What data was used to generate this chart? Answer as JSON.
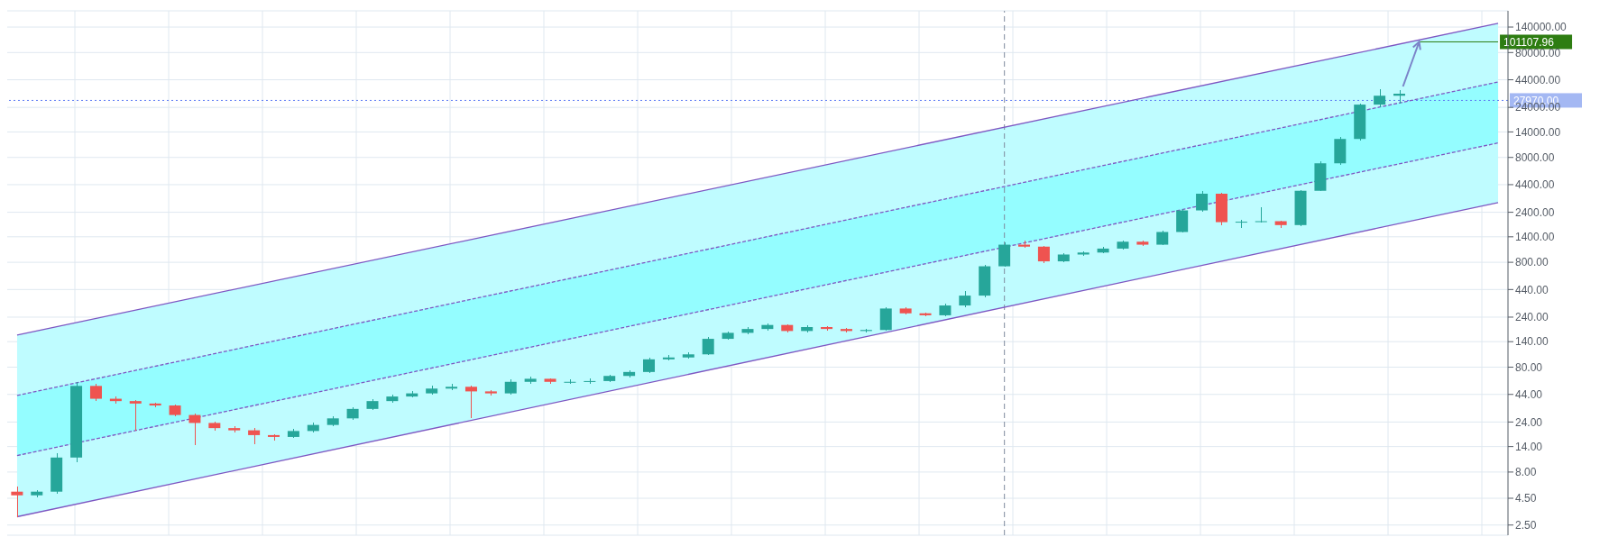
{
  "chart_data": {
    "type": "candlestick",
    "log": true,
    "grid": true,
    "tick_labels": "y",
    "categories": [
      null,
      null,
      null,
      null,
      null,
      null,
      null,
      null,
      null,
      null,
      null,
      null,
      null,
      null,
      null,
      null,
      null,
      null,
      null,
      null,
      null,
      null,
      null,
      null,
      null,
      null,
      null,
      null,
      null,
      null,
      null,
      null,
      null,
      null,
      null,
      null,
      null,
      null,
      null,
      null,
      null,
      null,
      null,
      null,
      null,
      null,
      null,
      null,
      null,
      null,
      null,
      null,
      null,
      null,
      null,
      null,
      null,
      null,
      null,
      null,
      null,
      null,
      null,
      null,
      null,
      null,
      null,
      null,
      null,
      null,
      null,
      null,
      null,
      null,
      null,
      null
    ],
    "ohlc": [
      [
        5.2,
        5.8,
        3.0,
        4.8
      ],
      [
        4.8,
        5.4,
        4.6,
        5.2
      ],
      [
        5.2,
        12,
        5.0,
        11
      ],
      [
        11,
        58,
        10,
        53
      ],
      [
        53,
        56,
        38,
        40
      ],
      [
        40,
        42,
        36,
        38
      ],
      [
        38,
        39,
        19.7,
        36
      ],
      [
        36,
        37,
        33,
        34.5
      ],
      [
        34.5,
        35,
        27,
        28
      ],
      [
        28,
        29,
        14.6,
        23.5
      ],
      [
        23.5,
        24,
        20,
        21
      ],
      [
        21,
        22,
        19,
        20
      ],
      [
        20,
        21,
        14.8,
        18
      ],
      [
        18,
        18.5,
        16,
        17.3
      ],
      [
        17.3,
        20.5,
        17,
        19.7
      ],
      [
        19.7,
        23.5,
        19,
        22.5
      ],
      [
        22.5,
        27,
        22,
        26
      ],
      [
        26,
        33,
        25,
        32
      ],
      [
        32,
        40,
        31,
        38
      ],
      [
        38,
        44,
        37,
        42
      ],
      [
        42,
        47,
        41,
        45
      ],
      [
        45,
        53,
        44,
        50
      ],
      [
        50,
        55,
        48,
        52
      ],
      [
        52,
        53,
        26,
        47
      ],
      [
        47,
        48,
        43,
        45
      ],
      [
        45,
        61,
        44,
        58
      ],
      [
        58,
        65,
        56,
        62
      ],
      [
        62,
        63,
        55,
        58
      ],
      [
        58,
        61,
        56,
        58
      ],
      [
        58,
        62,
        56,
        59
      ],
      [
        59,
        68,
        58,
        66
      ],
      [
        66,
        74,
        64,
        72
      ],
      [
        72,
        98,
        70,
        95
      ],
      [
        95,
        104,
        92,
        99
      ],
      [
        99,
        110,
        96,
        106
      ],
      [
        106,
        155,
        104,
        149
      ],
      [
        149,
        176,
        145,
        170
      ],
      [
        170,
        192,
        165,
        185
      ],
      [
        185,
        210,
        180,
        202
      ],
      [
        202,
        206,
        172,
        177
      ],
      [
        177,
        200,
        172,
        193
      ],
      [
        193,
        198,
        180,
        185
      ],
      [
        185,
        190,
        172,
        177
      ],
      [
        177,
        186,
        170,
        181
      ],
      [
        181,
        300,
        178,
        290
      ],
      [
        290,
        296,
        255,
        261
      ],
      [
        261,
        265,
        244,
        250
      ],
      [
        250,
        320,
        246,
        310
      ],
      [
        310,
        430,
        300,
        385
      ],
      [
        385,
        760,
        370,
        733
      ],
      [
        733,
        1250,
        720,
        1178
      ],
      [
        1178,
        1300,
        1090,
        1128
      ],
      [
        1128,
        1150,
        780,
        817
      ],
      [
        817,
        980,
        800,
        949
      ],
      [
        949,
        1020,
        930,
        991
      ],
      [
        991,
        1120,
        970,
        1081
      ],
      [
        1081,
        1300,
        1060,
        1257
      ],
      [
        1257,
        1280,
        1150,
        1178
      ],
      [
        1178,
        1600,
        1160,
        1556
      ],
      [
        1556,
        2600,
        1530,
        2500
      ],
      [
        2500,
        3800,
        2450,
        3606
      ],
      [
        3606,
        3700,
        1800,
        1932
      ],
      [
        1932,
        2050,
        1700,
        1950
      ],
      [
        1950,
        2700,
        1900,
        1972
      ],
      [
        1972,
        2000,
        1700,
        1811
      ],
      [
        1811,
        3900,
        1780,
        3846
      ],
      [
        3846,
        7300,
        3800,
        7031
      ],
      [
        7031,
        12500,
        6800,
        12000
      ],
      [
        12000,
        26000,
        11500,
        25500
      ],
      [
        25500,
        36000,
        24000,
        31000
      ],
      [
        31000,
        35000,
        26000,
        32400
      ],
      null,
      null,
      null,
      null,
      null
    ],
    "series": [
      {
        "type": "line",
        "color": "#7e57c2",
        "line_style": "solid",
        "lower": [
          3.0,
          null,
          null,
          null,
          null,
          null,
          null,
          null,
          null,
          null,
          null,
          null,
          null,
          null,
          null,
          null,
          null,
          null,
          null,
          null,
          null,
          null,
          null,
          null,
          null,
          null,
          null,
          null,
          null,
          null,
          null,
          null,
          null,
          null,
          null,
          null,
          null,
          null,
          null,
          null,
          null,
          null,
          null,
          null,
          null,
          null,
          null,
          null,
          null,
          null,
          null,
          null,
          null,
          null,
          null,
          null,
          null,
          null,
          null,
          null,
          null,
          null,
          null,
          null,
          null,
          null,
          null,
          null,
          null,
          null,
          null,
          null,
          null,
          null,
          null,
          2970
        ],
        "upper": [
          162,
          null,
          null,
          null,
          null,
          null,
          null,
          null,
          null,
          null,
          null,
          null,
          null,
          null,
          null,
          null,
          null,
          null,
          null,
          null,
          null,
          null,
          null,
          null,
          null,
          null,
          null,
          null,
          null,
          null,
          null,
          null,
          null,
          null,
          null,
          null,
          null,
          null,
          null,
          null,
          null,
          null,
          null,
          null,
          null,
          null,
          null,
          null,
          null,
          null,
          null,
          null,
          null,
          null,
          null,
          null,
          null,
          null,
          null,
          null,
          null,
          null,
          null,
          null,
          null,
          null,
          null,
          null,
          null,
          null,
          null,
          null,
          null,
          null,
          null,
          152000
        ],
        "values": [
          162,
          null,
          null,
          null,
          null,
          null,
          null,
          null,
          null,
          null,
          null,
          null,
          null,
          null,
          null,
          null,
          null,
          null,
          null,
          null,
          null,
          null,
          null,
          null,
          null,
          null,
          null,
          null,
          null,
          null,
          null,
          null,
          null,
          null,
          null,
          null,
          null,
          null,
          null,
          null,
          null,
          null,
          null,
          null,
          null,
          null,
          null,
          null,
          null,
          null,
          null,
          null,
          null,
          null,
          null,
          null,
          null,
          null,
          null,
          null,
          null,
          null,
          null,
          null,
          null,
          null,
          null,
          null,
          null,
          null,
          null,
          null,
          null,
          null,
          null,
          152000
        ]
      },
      {
        "type": "line",
        "color": "#7e57c2",
        "line_style": "dashed",
        "lower": [
          11.5,
          null,
          null,
          null,
          null,
          null,
          null,
          null,
          null,
          null,
          null,
          null,
          null,
          null,
          null,
          null,
          null,
          null,
          null,
          null,
          null,
          null,
          null,
          null,
          null,
          null,
          null,
          null,
          null,
          null,
          null,
          null,
          null,
          null,
          null,
          null,
          null,
          null,
          null,
          null,
          null,
          null,
          null,
          null,
          null,
          null,
          null,
          null,
          null,
          null,
          null,
          null,
          null,
          null,
          null,
          null,
          null,
          null,
          null,
          null,
          null,
          null,
          null,
          null,
          null,
          null,
          null,
          null,
          null,
          null,
          null,
          null,
          null,
          null,
          null,
          11000
        ],
        "upper": [
          43,
          null,
          null,
          null,
          null,
          null,
          null,
          null,
          null,
          null,
          null,
          null,
          null,
          null,
          null,
          null,
          null,
          null,
          null,
          null,
          null,
          null,
          null,
          null,
          null,
          null,
          null,
          null,
          null,
          null,
          null,
          null,
          null,
          null,
          null,
          null,
          null,
          null,
          null,
          null,
          null,
          null,
          null,
          null,
          null,
          null,
          null,
          null,
          null,
          null,
          null,
          null,
          null,
          null,
          null,
          null,
          null,
          null,
          null,
          null,
          null,
          null,
          null,
          null,
          null,
          null,
          null,
          null,
          null,
          null,
          null,
          null,
          null,
          null,
          null,
          41900
        ],
        "values": [
          43,
          null,
          null,
          null,
          null,
          null,
          null,
          null,
          null,
          null,
          null,
          null,
          null,
          null,
          null,
          null,
          null,
          null,
          null,
          null,
          null,
          null,
          null,
          null,
          null,
          null,
          null,
          null,
          null,
          null,
          null,
          null,
          null,
          null,
          null,
          null,
          null,
          null,
          null,
          null,
          null,
          null,
          null,
          null,
          null,
          null,
          null,
          null,
          null,
          null,
          null,
          null,
          null,
          null,
          null,
          null,
          null,
          null,
          null,
          null,
          null,
          null,
          null,
          null,
          null,
          null,
          null,
          null,
          null,
          null,
          null,
          null,
          null,
          null,
          null,
          41900
        ]
      },
      {
        "type": "line",
        "color": "#7e57c2",
        "line_style": "dashed",
        "values": [
          11.5,
          null,
          null,
          null,
          null,
          null,
          null,
          null,
          null,
          null,
          null,
          null,
          null,
          null,
          null,
          null,
          null,
          null,
          null,
          null,
          null,
          null,
          null,
          null,
          null,
          null,
          null,
          null,
          null,
          null,
          null,
          null,
          null,
          null,
          null,
          null,
          null,
          null,
          null,
          null,
          null,
          null,
          null,
          null,
          null,
          null,
          null,
          null,
          null,
          null,
          null,
          null,
          null,
          null,
          null,
          null,
          null,
          null,
          null,
          null,
          null,
          null,
          null,
          null,
          null,
          null,
          null,
          null,
          null,
          null,
          null,
          null,
          null,
          null,
          null,
          11000
        ]
      },
      {
        "type": "line",
        "color": "#7e57c2",
        "line_style": "solid",
        "values": [
          3.0,
          null,
          null,
          null,
          null,
          null,
          null,
          null,
          null,
          null,
          null,
          null,
          null,
          null,
          null,
          null,
          null,
          null,
          null,
          null,
          null,
          null,
          null,
          null,
          null,
          null,
          null,
          null,
          null,
          null,
          null,
          null,
          null,
          null,
          null,
          null,
          null,
          null,
          null,
          null,
          null,
          null,
          null,
          null,
          null,
          null,
          null,
          null,
          null,
          null,
          null,
          null,
          null,
          null,
          null,
          null,
          null,
          null,
          null,
          null,
          null,
          null,
          null,
          null,
          null,
          null,
          null,
          null,
          null,
          null,
          null,
          null,
          null,
          null,
          null,
          2970
        ]
      }
    ],
    "ylim": [
      2,
      200000
    ],
    "yticks": [
      {
        "value": 2.5,
        "label": "2.50"
      },
      {
        "value": 4.5,
        "label": "4.50"
      },
      {
        "value": 8,
        "label": "8.00"
      },
      {
        "value": 14,
        "label": "14.00"
      },
      {
        "value": 24,
        "label": "24.00"
      },
      {
        "value": 44,
        "label": "44.00"
      },
      {
        "value": 80,
        "label": "80.00"
      },
      {
        "value": 140,
        "label": "140.00"
      },
      {
        "value": 240,
        "label": "240.00"
      },
      {
        "value": 440,
        "label": "440.00"
      },
      {
        "value": 800,
        "label": "800.00"
      },
      {
        "value": 1400,
        "label": "1400.00"
      },
      {
        "value": 2400,
        "label": "2400.00"
      },
      {
        "value": 4400,
        "label": "4400.00"
      },
      {
        "value": 8000,
        "label": "8000.00"
      },
      {
        "value": 14000,
        "label": "14000.00"
      },
      {
        "value": 24000,
        "label": "24000.00"
      },
      {
        "value": 44000,
        "label": "44000.00"
      },
      {
        "value": 80000,
        "label": "80000.00"
      },
      {
        "value": 140000,
        "label": "140000.00"
      }
    ],
    "ref_lines": [
      {
        "axis": "y",
        "value": 27970,
        "label": "27970.00",
        "color": "#5d7cf5",
        "line_style": "dotted"
      },
      {
        "axis": "y",
        "value": 101107.96,
        "label": "101107.96",
        "color": "#2e7d12",
        "line_style": "solid"
      }
    ]
  }
}
